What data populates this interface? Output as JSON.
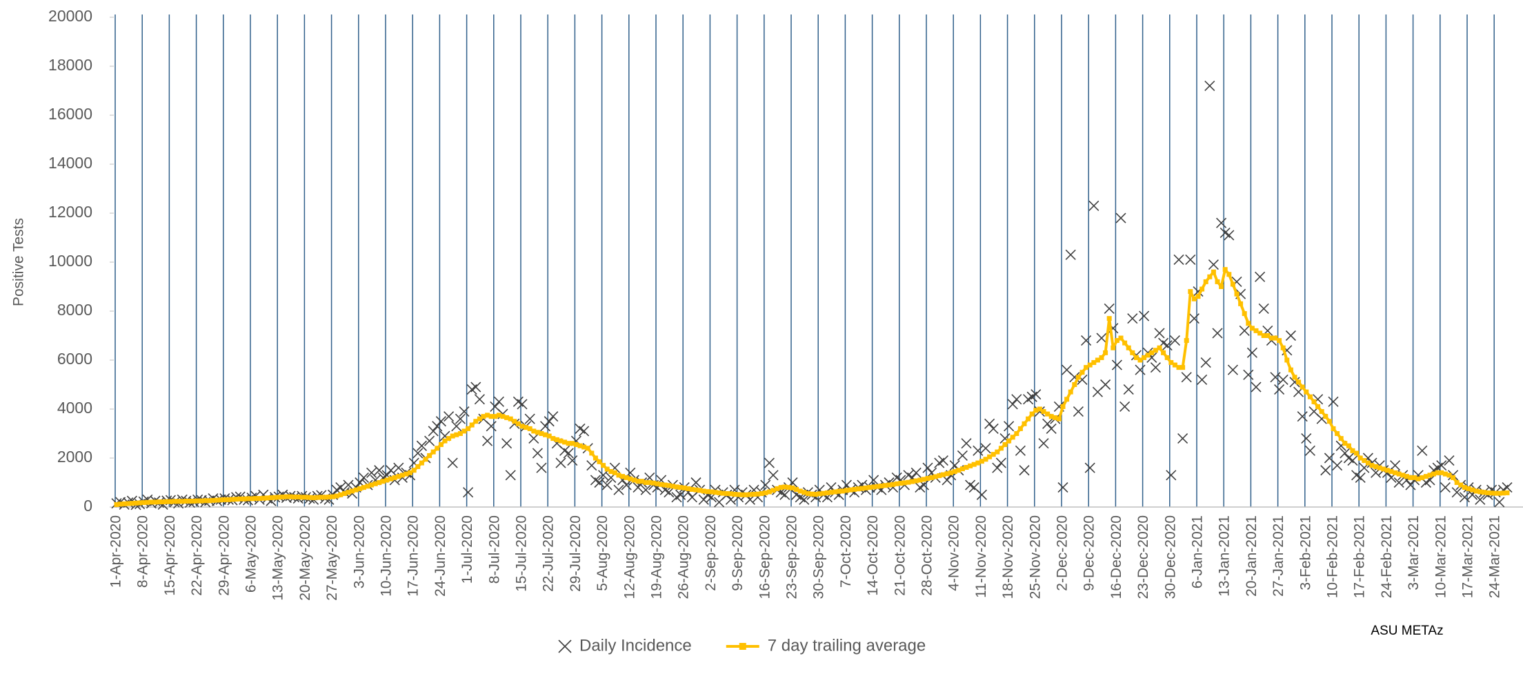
{
  "chart_data": {
    "type": "combo",
    "y_label": "Positive Tests",
    "source": "ASU METAz",
    "legend": "bottom",
    "ylim": [
      0,
      20000
    ],
    "yticks": [
      0,
      2000,
      4000,
      6000,
      8000,
      10000,
      12000,
      14000,
      16000,
      18000,
      20000
    ],
    "categories": [
      "1-Apr-2020",
      null,
      null,
      null,
      null,
      null,
      null,
      "8-Apr-2020",
      null,
      null,
      null,
      null,
      null,
      null,
      "15-Apr-2020",
      null,
      null,
      null,
      null,
      null,
      null,
      "22-Apr-2020",
      null,
      null,
      null,
      null,
      null,
      null,
      "29-Apr-2020",
      null,
      null,
      null,
      null,
      null,
      null,
      "6-May-2020",
      null,
      null,
      null,
      null,
      null,
      null,
      "13-May-2020",
      null,
      null,
      null,
      null,
      null,
      null,
      "20-May-2020",
      null,
      null,
      null,
      null,
      null,
      null,
      "27-May-2020",
      null,
      null,
      null,
      null,
      null,
      null,
      "3-Jun-2020",
      null,
      null,
      null,
      null,
      null,
      null,
      "10-Jun-2020",
      null,
      null,
      null,
      null,
      null,
      null,
      "17-Jun-2020",
      null,
      null,
      null,
      null,
      null,
      null,
      "24-Jun-2020",
      null,
      null,
      null,
      null,
      null,
      null,
      "1-Jul-2020",
      null,
      null,
      null,
      null,
      null,
      null,
      "8-Jul-2020",
      null,
      null,
      null,
      null,
      null,
      null,
      "15-Jul-2020",
      null,
      null,
      null,
      null,
      null,
      null,
      "22-Jul-2020",
      null,
      null,
      null,
      null,
      null,
      null,
      "29-Jul-2020",
      null,
      null,
      null,
      null,
      null,
      null,
      "5-Aug-2020",
      null,
      null,
      null,
      null,
      null,
      null,
      "12-Aug-2020",
      null,
      null,
      null,
      null,
      null,
      null,
      "19-Aug-2020",
      null,
      null,
      null,
      null,
      null,
      null,
      "26-Aug-2020",
      null,
      null,
      null,
      null,
      null,
      null,
      "2-Sep-2020",
      null,
      null,
      null,
      null,
      null,
      null,
      "9-Sep-2020",
      null,
      null,
      null,
      null,
      null,
      null,
      "16-Sep-2020",
      null,
      null,
      null,
      null,
      null,
      null,
      "23-Sep-2020",
      null,
      null,
      null,
      null,
      null,
      null,
      "30-Sep-2020",
      null,
      null,
      null,
      null,
      null,
      null,
      "7-Oct-2020",
      null,
      null,
      null,
      null,
      null,
      null,
      "14-Oct-2020",
      null,
      null,
      null,
      null,
      null,
      null,
      "21-Oct-2020",
      null,
      null,
      null,
      null,
      null,
      null,
      "28-Oct-2020",
      null,
      null,
      null,
      null,
      null,
      null,
      "4-Nov-2020",
      null,
      null,
      null,
      null,
      null,
      null,
      "11-Nov-2020",
      null,
      null,
      null,
      null,
      null,
      null,
      "18-Nov-2020",
      null,
      null,
      null,
      null,
      null,
      null,
      "25-Nov-2020",
      null,
      null,
      null,
      null,
      null,
      null,
      "2-Dec-2020",
      null,
      null,
      null,
      null,
      null,
      null,
      "9-Dec-2020",
      null,
      null,
      null,
      null,
      null,
      null,
      "16-Dec-2020",
      null,
      null,
      null,
      null,
      null,
      null,
      "23-Dec-2020",
      null,
      null,
      null,
      null,
      null,
      null,
      "30-Dec-2020",
      null,
      null,
      null,
      null,
      null,
      null,
      "6-Jan-2021",
      null,
      null,
      null,
      null,
      null,
      null,
      "13-Jan-2021",
      null,
      null,
      null,
      null,
      null,
      null,
      "20-Jan-2021",
      null,
      null,
      null,
      null,
      null,
      null,
      "27-Jan-2021",
      null,
      null,
      null,
      null,
      null,
      null,
      "3-Feb-2021",
      null,
      null,
      null,
      null,
      null,
      null,
      "10-Feb-2021",
      null,
      null,
      null,
      null,
      null,
      null,
      "17-Feb-2021",
      null,
      null,
      null,
      null,
      null,
      null,
      "24-Feb-2021",
      null,
      null,
      null,
      null,
      null,
      null,
      "3-Mar-2021",
      null,
      null,
      null,
      null,
      null,
      null,
      "10-Mar-2021",
      null,
      null,
      null,
      null,
      null,
      null,
      "17-Mar-2021",
      null,
      null,
      null,
      null,
      null,
      null,
      "24-Mar-2021",
      null,
      null,
      null
    ],
    "series": [
      {
        "name": "Daily Incidence",
        "type": "scatter",
        "color": "#404040",
        "values": [
          150,
          200,
          100,
          180,
          250,
          90,
          120,
          220,
          300,
          150,
          250,
          180,
          100,
          260,
          280,
          200,
          150,
          300,
          250,
          180,
          210,
          300,
          280,
          200,
          260,
          350,
          250,
          300,
          350,
          300,
          280,
          400,
          420,
          300,
          280,
          380,
          450,
          300,
          500,
          350,
          250,
          400,
          420,
          500,
          380,
          450,
          400,
          350,
          450,
          400,
          350,
          300,
          450,
          480,
          350,
          300,
          500,
          700,
          800,
          600,
          900,
          550,
          800,
          1000,
          1200,
          900,
          1400,
          1100,
          1500,
          1200,
          1300,
          1500,
          1100,
          1600,
          1200,
          1400,
          1300,
          1800,
          2200,
          2500,
          2000,
          2700,
          3100,
          3300,
          3500,
          2900,
          3700,
          1800,
          3300,
          3600,
          3900,
          600,
          4800,
          4900,
          4400,
          3600,
          2700,
          3300,
          4100,
          4300,
          3800,
          2600,
          1300,
          3400,
          4300,
          4200,
          3300,
          3600,
          2800,
          2200,
          1600,
          3300,
          3500,
          3700,
          2600,
          1800,
          2300,
          2200,
          1900,
          2700,
          3200,
          3100,
          2400,
          1700,
          1100,
          1000,
          1300,
          900,
          1200,
          1600,
          700,
          1100,
          900,
          1400,
          1100,
          800,
          1000,
          700,
          1200,
          900,
          800,
          1100,
          700,
          600,
          900,
          400,
          500,
          800,
          600,
          400,
          1000,
          700,
          300,
          500,
          400,
          700,
          200,
          600,
          500,
          300,
          700,
          400,
          600,
          500,
          300,
          700,
          400,
          600,
          900,
          1800,
          1300,
          700,
          600,
          500,
          800,
          1000,
          500,
          400,
          300,
          600,
          500,
          400,
          700,
          500,
          400,
          800,
          600,
          500,
          700,
          900,
          700,
          600,
          800,
          900,
          700,
          800,
          1100,
          800,
          700,
          900,
          1000,
          800,
          1200,
          1100,
          900,
          1300,
          1200,
          1400,
          800,
          900,
          1600,
          1400,
          1200,
          1800,
          1900,
          1100,
          1300,
          1700,
          1500,
          2100,
          2600,
          900,
          800,
          2300,
          500,
          2400,
          3400,
          3200,
          1600,
          1800,
          2800,
          3300,
          4200,
          4400,
          2300,
          1500,
          4400,
          4500,
          4600,
          3900,
          2600,
          3400,
          3200,
          3600,
          4100,
          800,
          5600,
          10300,
          5300,
          3900,
          5200,
          6800,
          1600,
          12300,
          4700,
          6900,
          5000,
          8100,
          7300,
          5800,
          11800,
          4100,
          4800,
          7700,
          6200,
          5600,
          7800,
          6300,
          6100,
          5700,
          7100,
          6700,
          6600,
          1300,
          6800,
          10100,
          2800,
          5300,
          10100,
          7700,
          8800,
          5200,
          5900,
          17200,
          9900,
          7100,
          11600,
          11200,
          11100,
          5600,
          9200,
          8700,
          7200,
          5400,
          6300,
          4900,
          9400,
          8100,
          7200,
          6800,
          5300,
          4800,
          5200,
          6400,
          7000,
          5100,
          4700,
          3700,
          2800,
          2300,
          3900,
          4400,
          3600,
          1500,
          2000,
          4300,
          1700,
          2500,
          2200,
          2000,
          1900,
          1300,
          1200,
          1600,
          2000,
          1800,
          1400,
          1700,
          1500,
          1400,
          1200,
          1700,
          1000,
          1300,
          1100,
          900,
          1100,
          1300,
          2300,
          1000,
          1100,
          1500,
          1600,
          1700,
          800,
          1900,
          1300,
          600,
          900,
          400,
          800,
          500,
          700,
          300,
          600,
          500,
          700,
          600,
          200,
          700,
          800
        ]
      },
      {
        "name": "7 day trailing average",
        "type": "line",
        "color": "#ffc000",
        "values": [
          100,
          120,
          130,
          140,
          150,
          160,
          170,
          180,
          190,
          200,
          200,
          210,
          210,
          220,
          220,
          230,
          230,
          230,
          240,
          240,
          240,
          250,
          250,
          260,
          260,
          270,
          280,
          290,
          300,
          300,
          310,
          320,
          330,
          330,
          340,
          340,
          350,
          350,
          360,
          370,
          380,
          390,
          400,
          410,
          420,
          420,
          410,
          410,
          400,
          400,
          390,
          380,
          390,
          400,
          400,
          410,
          420,
          450,
          500,
          550,
          600,
          650,
          700,
          750,
          800,
          850,
          900,
          950,
          1000,
          1050,
          1100,
          1150,
          1200,
          1250,
          1300,
          1350,
          1400,
          1500,
          1650,
          1800,
          1950,
          2100,
          2250,
          2400,
          2550,
          2700,
          2800,
          2900,
          2950,
          3000,
          3100,
          3200,
          3350,
          3500,
          3600,
          3700,
          3750,
          3700,
          3700,
          3750,
          3700,
          3650,
          3600,
          3500,
          3400,
          3300,
          3250,
          3200,
          3100,
          3050,
          3000,
          2950,
          2900,
          2800,
          2750,
          2700,
          2650,
          2600,
          2600,
          2550,
          2500,
          2450,
          2400,
          2200,
          2000,
          1850,
          1700,
          1550,
          1450,
          1400,
          1300,
          1250,
          1200,
          1150,
          1100,
          1050,
          1050,
          1000,
          1000,
          980,
          950,
          920,
          900,
          880,
          850,
          820,
          800,
          780,
          750,
          720,
          700,
          680,
          650,
          630,
          620,
          600,
          580,
          560,
          550,
          540,
          520,
          510,
          500,
          500,
          510,
          520,
          530,
          550,
          580,
          620,
          680,
          750,
          800,
          820,
          800,
          780,
          720,
          650,
          600,
          550,
          530,
          520,
          540,
          560,
          580,
          600,
          620,
          640,
          650,
          680,
          700,
          720,
          740,
          760,
          780,
          800,
          820,
          840,
          860,
          880,
          900,
          920,
          950,
          970,
          990,
          1010,
          1040,
          1070,
          1100,
          1130,
          1170,
          1200,
          1240,
          1280,
          1320,
          1360,
          1400,
          1450,
          1500,
          1560,
          1620,
          1680,
          1740,
          1800,
          1870,
          1950,
          2050,
          2150,
          2250,
          2400,
          2550,
          2700,
          2850,
          3000,
          3200,
          3400,
          3600,
          3800,
          3950,
          4000,
          3900,
          3800,
          3700,
          3650,
          3600,
          4100,
          4400,
          4700,
          5000,
          5300,
          5500,
          5700,
          5800,
          5900,
          6000,
          6100,
          6300,
          7700,
          6500,
          6800,
          6900,
          6700,
          6500,
          6300,
          6100,
          6000,
          6100,
          6200,
          6300,
          6400,
          6500,
          6300,
          6100,
          5900,
          5800,
          5700,
          5700,
          6800,
          8800,
          8500,
          8600,
          8900,
          9200,
          9400,
          9600,
          9200,
          9000,
          9700,
          9500,
          9100,
          8700,
          8300,
          7900,
          7500,
          7300,
          7200,
          7100,
          7000,
          7000,
          6900,
          6900,
          6800,
          6500,
          6000,
          5600,
          5300,
          5100,
          4900,
          4700,
          4500,
          4300,
          4100,
          3900,
          3700,
          3500,
          3200,
          3000,
          2800,
          2600,
          2500,
          2300,
          2200,
          2000,
          1900,
          1800,
          1700,
          1650,
          1600,
          1550,
          1500,
          1450,
          1400,
          1350,
          1300,
          1250,
          1200,
          1200,
          1150,
          1200,
          1250,
          1300,
          1350,
          1400,
          1400,
          1350,
          1300,
          1200,
          1000,
          900,
          800,
          750,
          700,
          650,
          620,
          600,
          580,
          570,
          560,
          560,
          570,
          580
        ]
      }
    ]
  }
}
